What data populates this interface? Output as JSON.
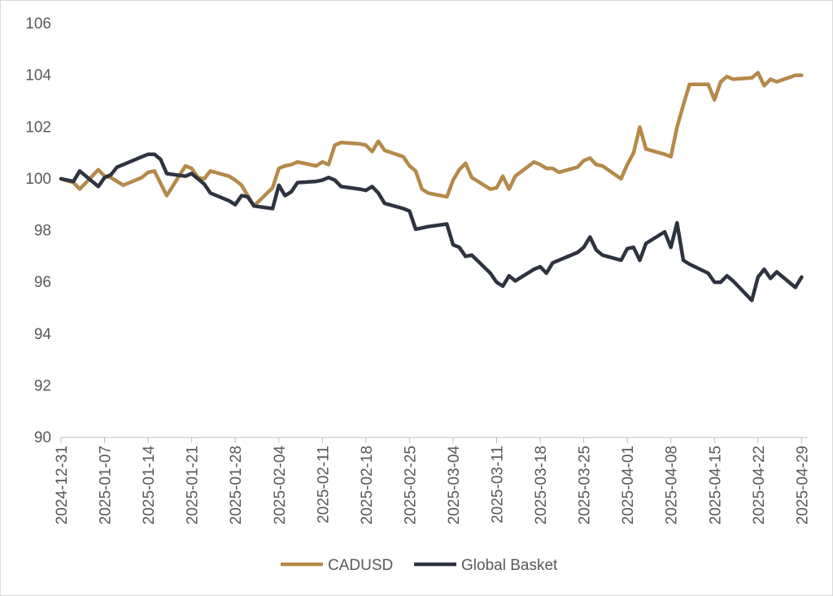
{
  "chart_data": {
    "type": "line",
    "title": "",
    "xlabel": "",
    "ylabel": "",
    "ylim": [
      90,
      106
    ],
    "y_ticks": [
      90,
      92,
      94,
      96,
      98,
      100,
      102,
      104,
      106
    ],
    "x_range": [
      "2024-12-31",
      "2025-04-30"
    ],
    "x_tick_labels": [
      "2024-12-31",
      "2025-01-07",
      "2025-01-14",
      "2025-01-21",
      "2025-01-28",
      "2025-02-04",
      "2025-02-11",
      "2025-02-18",
      "2025-02-25",
      "2025-03-04",
      "2025-03-11",
      "2025-03-18",
      "2025-03-25",
      "2025-04-01",
      "2025-04-08",
      "2025-04-15",
      "2025-04-22",
      "2025-04-29"
    ],
    "grid": false,
    "legend_position": "bottom",
    "series": [
      {
        "name": "CADUSD",
        "color": "#B5894A",
        "points": [
          [
            "2024-12-31",
            100.0
          ],
          [
            "2025-01-02",
            99.85
          ],
          [
            "2025-01-03",
            99.6
          ],
          [
            "2025-01-06",
            100.35
          ],
          [
            "2025-01-07",
            100.1
          ],
          [
            "2025-01-08",
            100.05
          ],
          [
            "2025-01-10",
            99.75
          ],
          [
            "2025-01-13",
            100.05
          ],
          [
            "2025-01-14",
            100.25
          ],
          [
            "2025-01-15",
            100.3
          ],
          [
            "2025-01-17",
            99.35
          ],
          [
            "2025-01-20",
            100.5
          ],
          [
            "2025-01-21",
            100.4
          ],
          [
            "2025-01-22",
            100.05
          ],
          [
            "2025-01-23",
            100.0
          ],
          [
            "2025-01-24",
            100.3
          ],
          [
            "2025-01-27",
            100.1
          ],
          [
            "2025-01-28",
            99.95
          ],
          [
            "2025-01-29",
            99.75
          ],
          [
            "2025-01-31",
            98.95
          ],
          [
            "2025-02-03",
            99.65
          ],
          [
            "2025-02-04",
            100.4
          ],
          [
            "2025-02-05",
            100.5
          ],
          [
            "2025-02-06",
            100.55
          ],
          [
            "2025-02-07",
            100.65
          ],
          [
            "2025-02-10",
            100.5
          ],
          [
            "2025-02-11",
            100.65
          ],
          [
            "2025-02-12",
            100.55
          ],
          [
            "2025-02-13",
            101.3
          ],
          [
            "2025-02-14",
            101.4
          ],
          [
            "2025-02-17",
            101.35
          ],
          [
            "2025-02-18",
            101.3
          ],
          [
            "2025-02-19",
            101.05
          ],
          [
            "2025-02-20",
            101.45
          ],
          [
            "2025-02-21",
            101.1
          ],
          [
            "2025-02-24",
            100.85
          ],
          [
            "2025-02-25",
            100.5
          ],
          [
            "2025-02-26",
            100.3
          ],
          [
            "2025-02-27",
            99.6
          ],
          [
            "2025-02-28",
            99.45
          ],
          [
            "2025-03-03",
            99.3
          ],
          [
            "2025-03-04",
            99.95
          ],
          [
            "2025-03-05",
            100.35
          ],
          [
            "2025-03-06",
            100.6
          ],
          [
            "2025-03-07",
            100.05
          ],
          [
            "2025-03-10",
            99.6
          ],
          [
            "2025-03-11",
            99.65
          ],
          [
            "2025-03-12",
            100.1
          ],
          [
            "2025-03-13",
            99.6
          ],
          [
            "2025-03-14",
            100.1
          ],
          [
            "2025-03-17",
            100.65
          ],
          [
            "2025-03-18",
            100.55
          ],
          [
            "2025-03-19",
            100.4
          ],
          [
            "2025-03-20",
            100.4
          ],
          [
            "2025-03-21",
            100.25
          ],
          [
            "2025-03-24",
            100.45
          ],
          [
            "2025-03-25",
            100.7
          ],
          [
            "2025-03-26",
            100.8
          ],
          [
            "2025-03-27",
            100.55
          ],
          [
            "2025-03-28",
            100.5
          ],
          [
            "2025-03-31",
            100.0
          ],
          [
            "2025-04-01",
            100.55
          ],
          [
            "2025-04-02",
            101.0
          ],
          [
            "2025-04-03",
            102.0
          ],
          [
            "2025-04-04",
            101.15
          ],
          [
            "2025-04-07",
            100.95
          ],
          [
            "2025-04-08",
            100.85
          ],
          [
            "2025-04-09",
            102.0
          ],
          [
            "2025-04-10",
            102.85
          ],
          [
            "2025-04-11",
            103.65
          ],
          [
            "2025-04-14",
            103.65
          ],
          [
            "2025-04-15",
            103.05
          ],
          [
            "2025-04-16",
            103.75
          ],
          [
            "2025-04-17",
            103.95
          ],
          [
            "2025-04-18",
            103.85
          ],
          [
            "2025-04-21",
            103.9
          ],
          [
            "2025-04-22",
            104.1
          ],
          [
            "2025-04-23",
            103.6
          ],
          [
            "2025-04-24",
            103.85
          ],
          [
            "2025-04-25",
            103.75
          ],
          [
            "2025-04-28",
            104.0
          ],
          [
            "2025-04-29",
            104.0
          ]
        ]
      },
      {
        "name": "Global Basket",
        "color": "#2E3340",
        "points": [
          [
            "2024-12-31",
            100.0
          ],
          [
            "2025-01-02",
            99.9
          ],
          [
            "2025-01-03",
            100.3
          ],
          [
            "2025-01-06",
            99.7
          ],
          [
            "2025-01-07",
            100.05
          ],
          [
            "2025-01-08",
            100.15
          ],
          [
            "2025-01-09",
            100.45
          ],
          [
            "2025-01-10",
            100.55
          ],
          [
            "2025-01-13",
            100.85
          ],
          [
            "2025-01-14",
            100.95
          ],
          [
            "2025-01-15",
            100.95
          ],
          [
            "2025-01-16",
            100.75
          ],
          [
            "2025-01-17",
            100.2
          ],
          [
            "2025-01-20",
            100.1
          ],
          [
            "2025-01-21",
            100.2
          ],
          [
            "2025-01-22",
            100.0
          ],
          [
            "2025-01-23",
            99.8
          ],
          [
            "2025-01-24",
            99.45
          ],
          [
            "2025-01-27",
            99.15
          ],
          [
            "2025-01-28",
            99.0
          ],
          [
            "2025-01-29",
            99.35
          ],
          [
            "2025-01-30",
            99.3
          ],
          [
            "2025-01-31",
            98.95
          ],
          [
            "2025-02-03",
            98.85
          ],
          [
            "2025-02-04",
            99.75
          ],
          [
            "2025-02-05",
            99.35
          ],
          [
            "2025-02-06",
            99.5
          ],
          [
            "2025-02-07",
            99.85
          ],
          [
            "2025-02-10",
            99.9
          ],
          [
            "2025-02-11",
            99.95
          ],
          [
            "2025-02-12",
            100.05
          ],
          [
            "2025-02-13",
            99.95
          ],
          [
            "2025-02-14",
            99.7
          ],
          [
            "2025-02-17",
            99.6
          ],
          [
            "2025-02-18",
            99.55
          ],
          [
            "2025-02-19",
            99.7
          ],
          [
            "2025-02-20",
            99.45
          ],
          [
            "2025-02-21",
            99.05
          ],
          [
            "2025-02-24",
            98.85
          ],
          [
            "2025-02-25",
            98.75
          ],
          [
            "2025-02-26",
            98.05
          ],
          [
            "2025-02-27",
            98.1
          ],
          [
            "2025-02-28",
            98.15
          ],
          [
            "2025-03-03",
            98.25
          ],
          [
            "2025-03-04",
            97.45
          ],
          [
            "2025-03-05",
            97.35
          ],
          [
            "2025-03-06",
            97.0
          ],
          [
            "2025-03-07",
            97.05
          ],
          [
            "2025-03-10",
            96.35
          ],
          [
            "2025-03-11",
            96.0
          ],
          [
            "2025-03-12",
            95.85
          ],
          [
            "2025-03-13",
            96.25
          ],
          [
            "2025-03-14",
            96.05
          ],
          [
            "2025-03-17",
            96.5
          ],
          [
            "2025-03-18",
            96.6
          ],
          [
            "2025-03-19",
            96.35
          ],
          [
            "2025-03-20",
            96.75
          ],
          [
            "2025-03-21",
            96.85
          ],
          [
            "2025-03-24",
            97.15
          ],
          [
            "2025-03-25",
            97.35
          ],
          [
            "2025-03-26",
            97.75
          ],
          [
            "2025-03-27",
            97.25
          ],
          [
            "2025-03-28",
            97.05
          ],
          [
            "2025-03-31",
            96.85
          ],
          [
            "2025-04-01",
            97.3
          ],
          [
            "2025-04-02",
            97.35
          ],
          [
            "2025-04-03",
            96.85
          ],
          [
            "2025-04-04",
            97.5
          ],
          [
            "2025-04-07",
            97.95
          ],
          [
            "2025-04-08",
            97.35
          ],
          [
            "2025-04-09",
            98.3
          ],
          [
            "2025-04-10",
            96.85
          ],
          [
            "2025-04-11",
            96.7
          ],
          [
            "2025-04-14",
            96.35
          ],
          [
            "2025-04-15",
            96.0
          ],
          [
            "2025-04-16",
            96.0
          ],
          [
            "2025-04-17",
            96.25
          ],
          [
            "2025-04-18",
            96.05
          ],
          [
            "2025-04-21",
            95.3
          ],
          [
            "2025-04-22",
            96.2
          ],
          [
            "2025-04-23",
            96.5
          ],
          [
            "2025-04-24",
            96.15
          ],
          [
            "2025-04-25",
            96.4
          ],
          [
            "2025-04-28",
            95.8
          ],
          [
            "2025-04-29",
            96.2
          ]
        ]
      }
    ]
  }
}
